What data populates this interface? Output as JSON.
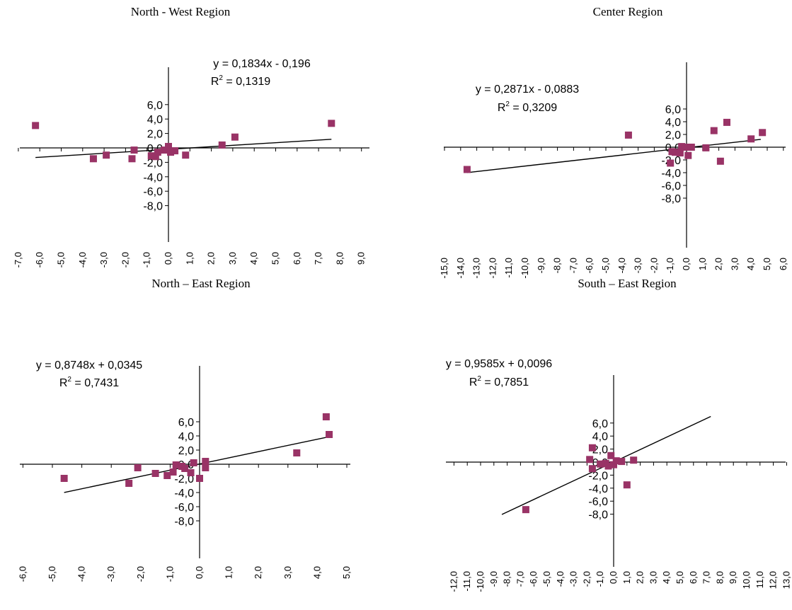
{
  "colors": {
    "marker": "#993366",
    "axis": "#000000",
    "trendline": "#000000"
  },
  "chart_data": [
    {
      "type": "scatter",
      "title": "North - West Region",
      "xlabel": "",
      "ylabel": "",
      "xlim": [
        -7,
        9
      ],
      "ylim": [
        -8,
        7
      ],
      "x_ticks": [
        "-7,0",
        "-6,0",
        "-5,0",
        "-4,0",
        "-3,0",
        "-2,0",
        "-1,0",
        "0,0",
        "1,0",
        "2,0",
        "3,0",
        "4,0",
        "5,0",
        "6,0",
        "7,0",
        "8,0",
        "9,0"
      ],
      "y_ticks": [
        "-8,0",
        "-6,0",
        "-4,0",
        "-2,0",
        "0,0",
        "2,0",
        "4,0",
        "6,0"
      ],
      "points": [
        {
          "x": -6.2,
          "y": 3.1
        },
        {
          "x": -3.5,
          "y": -1.5
        },
        {
          "x": -2.9,
          "y": -1.0
        },
        {
          "x": -1.6,
          "y": -0.3
        },
        {
          "x": -1.7,
          "y": -1.5
        },
        {
          "x": -0.8,
          "y": -1.1
        },
        {
          "x": -0.6,
          "y": -1.2
        },
        {
          "x": -0.5,
          "y": -0.6
        },
        {
          "x": -0.2,
          "y": -0.3
        },
        {
          "x": 0.0,
          "y": 0.2
        },
        {
          "x": 0.1,
          "y": -0.6
        },
        {
          "x": 0.3,
          "y": -0.4
        },
        {
          "x": 0.8,
          "y": -1.0
        },
        {
          "x": 2.5,
          "y": 0.4
        },
        {
          "x": 3.1,
          "y": 1.5
        },
        {
          "x": 7.6,
          "y": 3.4
        }
      ],
      "trendline": {
        "slope": 0.1834,
        "intercept": -0.196,
        "x_range": [
          -6.2,
          7.6
        ]
      },
      "equation": "y = 0,1834x - 0,196",
      "r2_label": "R",
      "r2_sup": "2",
      "r2_value": " = 0,1319"
    },
    {
      "type": "scatter",
      "title": "Center Region",
      "xlabel": "",
      "ylabel": "",
      "xlim": [
        -15,
        6
      ],
      "ylim": [
        -8,
        7
      ],
      "x_ticks": [
        "-15,0",
        "-14,0",
        "-13,0",
        "-12,0",
        "-11,0",
        "-10,0",
        "-9,0",
        "-8,0",
        "-7,0",
        "-6,0",
        "-5,0",
        "-4,0",
        "-3,0",
        "-2,0",
        "-1,0",
        "0,0",
        "1,0",
        "2,0",
        "3,0",
        "4,0",
        "5,0",
        "6,0"
      ],
      "y_ticks": [
        "-8,0",
        "-6,0",
        "-4,0",
        "-2,0",
        "0,0",
        "2,0",
        "4,0",
        "6,0"
      ],
      "points": [
        {
          "x": -13.6,
          "y": -3.5
        },
        {
          "x": -3.6,
          "y": 1.9
        },
        {
          "x": -1.0,
          "y": -2.5
        },
        {
          "x": -0.9,
          "y": -0.7
        },
        {
          "x": -0.7,
          "y": -0.8
        },
        {
          "x": -0.4,
          "y": -0.9
        },
        {
          "x": -0.3,
          "y": 0.1
        },
        {
          "x": -0.1,
          "y": 0.0
        },
        {
          "x": 0.1,
          "y": -1.3
        },
        {
          "x": 0.3,
          "y": 0.0
        },
        {
          "x": 1.2,
          "y": -0.1
        },
        {
          "x": 1.7,
          "y": 2.6
        },
        {
          "x": 2.1,
          "y": -2.2
        },
        {
          "x": 2.5,
          "y": 3.9
        },
        {
          "x": 4.0,
          "y": 1.3
        },
        {
          "x": 4.7,
          "y": 2.3
        }
      ],
      "trendline": {
        "slope": 0.2871,
        "intercept": -0.0883,
        "x_range": [
          -13.6,
          4.6
        ]
      },
      "equation": "y = 0,2871x - 0,0883",
      "r2_label": "R",
      "r2_sup": "2",
      "r2_value": " = 0,3209"
    },
    {
      "type": "scatter",
      "title": "North – East Region",
      "xlabel": "",
      "ylabel": "",
      "xlim": [
        -6,
        5
      ],
      "ylim": [
        -8,
        7
      ],
      "x_ticks": [
        "-6,0",
        "-5,0",
        "-4,0",
        "-3,0",
        "-2,0",
        "-1,0",
        "0,0",
        "1,0",
        "2,0",
        "3,0",
        "4,0",
        "5,0"
      ],
      "y_ticks": [
        "-8,0",
        "-6,0",
        "-4,0",
        "-2,0",
        "0,0",
        "2,0",
        "4,0",
        "6,0"
      ],
      "points": [
        {
          "x": -4.6,
          "y": -2.0
        },
        {
          "x": -2.4,
          "y": -2.7
        },
        {
          "x": -2.1,
          "y": -0.5
        },
        {
          "x": -1.5,
          "y": -1.3
        },
        {
          "x": -1.1,
          "y": -1.6
        },
        {
          "x": -0.9,
          "y": -1.1
        },
        {
          "x": -0.8,
          "y": -0.1
        },
        {
          "x": -0.6,
          "y": -0.3
        },
        {
          "x": -0.5,
          "y": -0.6
        },
        {
          "x": -0.3,
          "y": -1.2
        },
        {
          "x": -0.2,
          "y": 0.2
        },
        {
          "x": 0.0,
          "y": -2.0
        },
        {
          "x": 0.2,
          "y": -0.5
        },
        {
          "x": 0.2,
          "y": 0.4
        },
        {
          "x": 3.3,
          "y": 1.6
        },
        {
          "x": 4.3,
          "y": 6.7
        },
        {
          "x": 4.4,
          "y": 4.2
        }
      ],
      "trendline": {
        "slope": 0.8748,
        "intercept": 0.0345,
        "x_range": [
          -4.6,
          4.4
        ]
      },
      "equation": "y = 0,8748x + 0,0345",
      "r2_label": "R",
      "r2_sup": "2",
      "r2_value": " = 0,7431"
    },
    {
      "type": "scatter",
      "title": "South – East Region",
      "xlabel": "",
      "ylabel": "",
      "xlim": [
        -12,
        13
      ],
      "ylim": [
        -8,
        7
      ],
      "x_ticks": [
        "-12,0",
        "-11,0",
        "-10,0",
        "-9,0",
        "-8,0",
        "-7,0",
        "-6,0",
        "-5,0",
        "-4,0",
        "-3,0",
        "-2,0",
        "-1,0",
        "0,0",
        "1,0",
        "2,0",
        "3,0",
        "4,0",
        "5,0",
        "6,0",
        "7,0",
        "8,0",
        "9,0",
        "10,0",
        "11,0",
        "12,0",
        "13,0"
      ],
      "y_ticks": [
        "-8,0",
        "-6,0",
        "-4,0",
        "-2,0",
        "0,0",
        "2,0",
        "4,0",
        "6,0"
      ],
      "points": [
        {
          "x": -6.6,
          "y": -7.3
        },
        {
          "x": -1.8,
          "y": 0.4
        },
        {
          "x": -1.6,
          "y": 2.2
        },
        {
          "x": -1.6,
          "y": -1.0
        },
        {
          "x": -1.0,
          "y": -0.3
        },
        {
          "x": -0.6,
          "y": -0.2
        },
        {
          "x": -0.4,
          "y": -0.6
        },
        {
          "x": -0.2,
          "y": 1.0
        },
        {
          "x": 0.0,
          "y": -0.4
        },
        {
          "x": 0.2,
          "y": 0.2
        },
        {
          "x": 0.6,
          "y": 0.1
        },
        {
          "x": 1.0,
          "y": -3.5
        },
        {
          "x": 1.5,
          "y": 0.3
        }
      ],
      "trendline": {
        "slope": 0.9585,
        "intercept": 0.0096,
        "x_range": [
          -8.4,
          7.3
        ]
      },
      "equation": "y = 0,9585x + 0,0096",
      "r2_label": "R",
      "r2_sup": "2",
      "r2_value": " = 0,7851"
    }
  ]
}
